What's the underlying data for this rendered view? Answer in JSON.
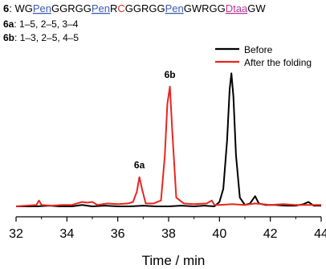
{
  "header": {
    "compound_id": "6",
    "sequence_segments": [
      {
        "text": "WG",
        "kind": "plain"
      },
      {
        "text": "Pen",
        "kind": "pen"
      },
      {
        "text": "GGRGG",
        "kind": "plain"
      },
      {
        "text": "Pen",
        "kind": "pen"
      },
      {
        "text": "R",
        "kind": "plain"
      },
      {
        "text": "C",
        "kind": "cys"
      },
      {
        "text": "GGRGG",
        "kind": "plain"
      },
      {
        "text": "Pen",
        "kind": "pen"
      },
      {
        "text": "GWRGG",
        "kind": "plain"
      },
      {
        "text": "Dtaa",
        "kind": "dtaa"
      },
      {
        "text": "GW",
        "kind": "plain"
      }
    ],
    "isomers": [
      {
        "label": "6a",
        "bonds": "1–5, 2–5, 3–4"
      },
      {
        "label": "6b",
        "bonds": "1–3, 2–5, 4–5"
      }
    ]
  },
  "colors": {
    "pen": "#3b5bb5",
    "cys": "#e0301e",
    "dtaa": "#b8369a",
    "before": "#000000",
    "after": "#e8261e"
  },
  "chart_data": {
    "type": "line",
    "title": "",
    "xlabel": "Time / min",
    "ylabel": "",
    "xlim": [
      32,
      44
    ],
    "x_ticks": [
      32,
      34,
      36,
      38,
      40,
      42,
      44
    ],
    "legend_position": "top-right",
    "annotations": [
      {
        "text": "6a",
        "x": 36.85,
        "y": 0.26
      },
      {
        "text": "6b",
        "x": 38.05,
        "y": 0.88
      }
    ],
    "series": [
      {
        "name": "Before",
        "color": "#000000",
        "x": [
          32.0,
          32.8,
          33.3,
          33.7,
          34.2,
          34.6,
          35.0,
          35.5,
          36.0,
          36.5,
          37.0,
          37.5,
          38.0,
          38.5,
          39.0,
          39.4,
          39.8,
          40.0,
          40.15,
          40.3,
          40.4,
          40.47,
          40.55,
          40.65,
          40.8,
          41.0,
          41.2,
          41.4,
          41.55,
          41.8,
          42.2,
          42.6,
          43.0,
          43.3,
          43.5,
          43.7,
          44.0
        ],
        "values": [
          0.0,
          0.0,
          0.005,
          0.0,
          0.0,
          0.01,
          0.0,
          0.005,
          0.0,
          0.0,
          0.005,
          0.0,
          0.0,
          0.005,
          0.0,
          0.005,
          0.0,
          0.03,
          0.12,
          0.45,
          0.8,
          0.91,
          0.75,
          0.35,
          0.06,
          0.01,
          0.02,
          0.07,
          0.02,
          0.01,
          0.01,
          0.005,
          0.005,
          0.015,
          0.03,
          0.005,
          0.005
        ]
      },
      {
        "name": "After the folding",
        "color": "#e8261e",
        "x": [
          32.0,
          32.4,
          32.8,
          32.9,
          33.0,
          33.4,
          33.8,
          34.2,
          34.6,
          34.8,
          35.0,
          35.2,
          35.6,
          36.0,
          36.4,
          36.6,
          36.75,
          36.85,
          36.95,
          37.1,
          37.4,
          37.7,
          37.85,
          37.95,
          38.05,
          38.15,
          38.3,
          38.6,
          39.0,
          39.5,
          39.7,
          39.8,
          40.0,
          40.5,
          41.0,
          41.4,
          42.0,
          42.5,
          43.0,
          43.5,
          44.0
        ],
        "values": [
          0.0,
          0.005,
          0.01,
          0.04,
          0.01,
          0.005,
          0.01,
          0.01,
          0.03,
          0.025,
          0.03,
          0.01,
          0.02,
          0.015,
          0.02,
          0.03,
          0.1,
          0.2,
          0.12,
          0.02,
          0.02,
          0.04,
          0.35,
          0.7,
          0.82,
          0.5,
          0.06,
          0.02,
          0.015,
          0.02,
          0.04,
          0.01,
          0.01,
          0.015,
          0.01,
          0.02,
          0.01,
          0.015,
          0.01,
          0.01,
          0.01
        ]
      }
    ]
  }
}
